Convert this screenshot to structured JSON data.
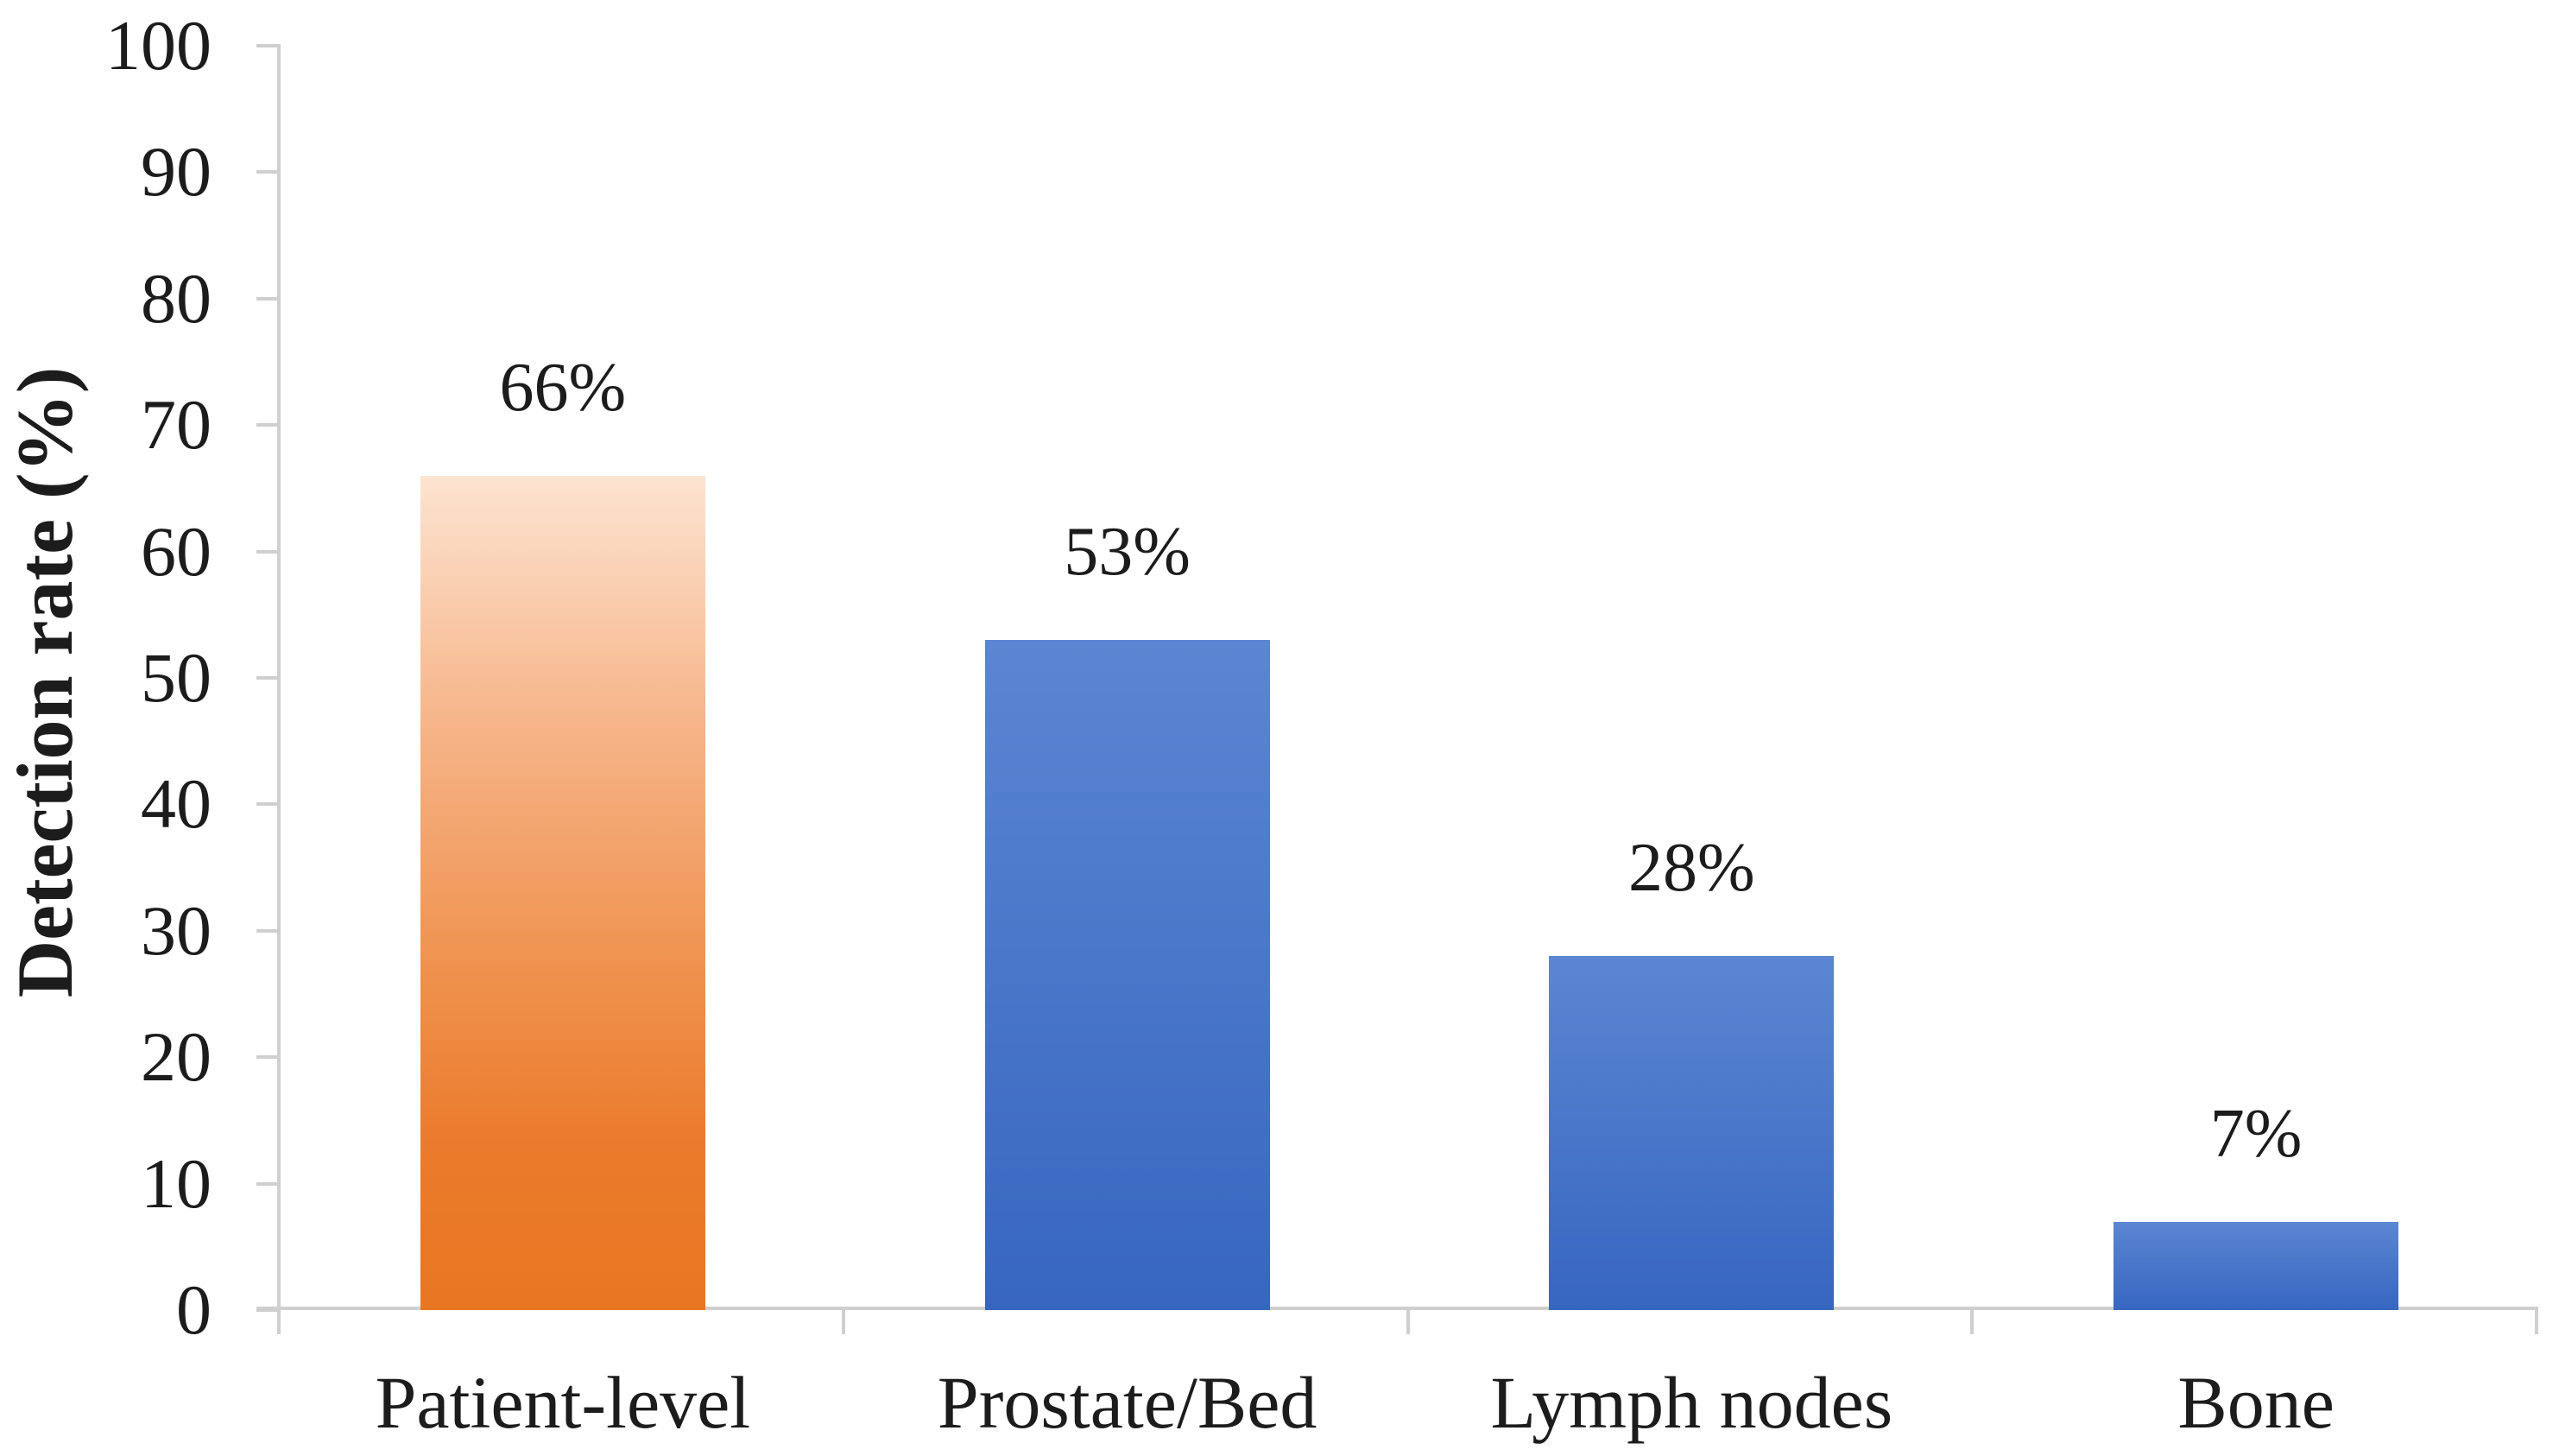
{
  "chart_data": {
    "type": "bar",
    "title": "",
    "ylabel": "Detection rate (%)",
    "xlabel": "",
    "categories": [
      "Patient-level",
      "Prostate/Bed",
      "Lymph nodes",
      "Bone"
    ],
    "values": [
      66,
      53,
      28,
      7
    ],
    "data_labels": [
      "66%",
      "53%",
      "28%",
      "7%"
    ],
    "ylim": [
      0,
      100
    ],
    "yticks": [
      0,
      10,
      20,
      30,
      40,
      50,
      60,
      70,
      80,
      90,
      100
    ],
    "grid": false,
    "legend": false,
    "bar_fills": [
      {
        "name": "orange-gradient",
        "stops": [
          "#fce4d1",
          "#f6b488",
          "#ef914c",
          "#eb7b2c",
          "#e97621"
        ],
        "positions": [
          0,
          30,
          60,
          80,
          100
        ]
      },
      {
        "name": "blue-gradient",
        "stops": [
          "#5b86d2",
          "#3766c0"
        ],
        "positions": [
          0,
          100
        ]
      },
      {
        "name": "blue-gradient",
        "stops": [
          "#5b86d2",
          "#3766c0"
        ],
        "positions": [
          0,
          100
        ]
      },
      {
        "name": "blue-gradient",
        "stops": [
          "#5b86d2",
          "#3766c0"
        ],
        "positions": [
          0,
          100
        ]
      }
    ],
    "colors": {
      "axis": "#cfcfcf",
      "text": "#1c1c1c",
      "background": "#ffffff"
    }
  }
}
